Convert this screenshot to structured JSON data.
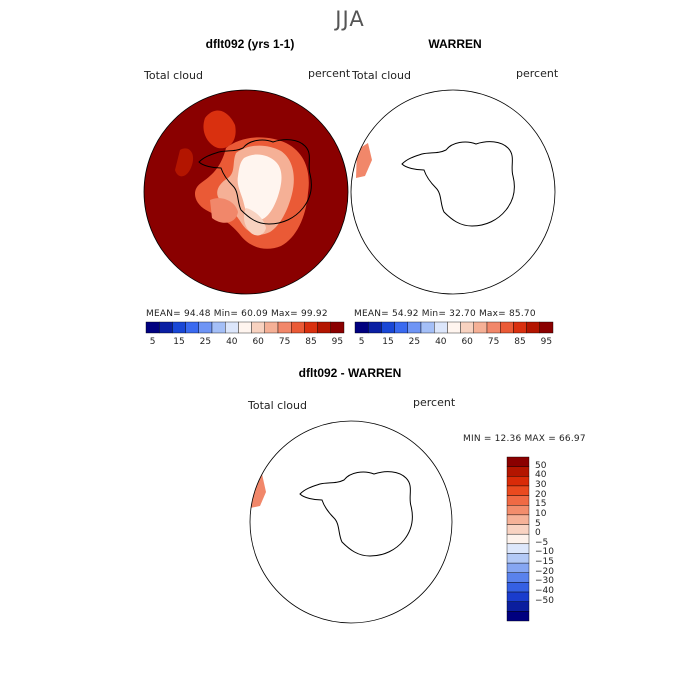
{
  "figure": {
    "season": "JJA"
  },
  "panels": [
    {
      "title": "dflt092 (yrs 1-1)",
      "field_label": "Total cloud",
      "units": "percent",
      "stats": "MEAN=   94.48   Min=   60.09   Max=   99.92"
    },
    {
      "title": "WARREN",
      "field_label": "Total cloud",
      "units": "percent",
      "stats": "MEAN=   54.92   Min=   32.70   Max=   85.70"
    },
    {
      "title": "dflt092 - WARREN",
      "field_label": "Total cloud",
      "units": "percent",
      "stats": "MIN =   12.36  MAX =   66.97"
    }
  ],
  "colorbar_abs": {
    "ticks": [
      "5",
      "15",
      "25",
      "40",
      "60",
      "75",
      "85",
      "95"
    ],
    "colors": [
      "#00007f",
      "#0a1fa3",
      "#1947d6",
      "#3a6af0",
      "#6f95f5",
      "#a4bff7",
      "#dce6fb",
      "#fff5ef",
      "#f8d2c0",
      "#f5b096",
      "#f1876a",
      "#ea5a36",
      "#d9300f",
      "#b31500",
      "#8a0000"
    ]
  },
  "colorbar_diff": {
    "ticks": [
      "50",
      "40",
      "30",
      "20",
      "15",
      "10",
      "5",
      "0",
      "−5",
      "−10",
      "−15",
      "−20",
      "−30",
      "−40",
      "−50"
    ],
    "colors": [
      "#8a0000",
      "#b31500",
      "#d92b08",
      "#ea4a1f",
      "#f06a44",
      "#f38d6c",
      "#f6b298",
      "#f9d3c2",
      "#fdf2ec",
      "#dde7fb",
      "#b3c9f6",
      "#86a6f2",
      "#5a82ec",
      "#3560e3",
      "#1a3ccd",
      "#0b1e9e",
      "#00007f"
    ]
  }
}
